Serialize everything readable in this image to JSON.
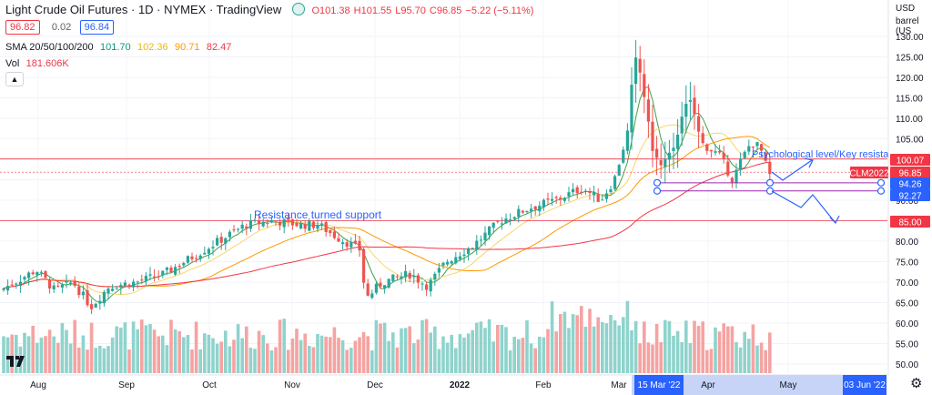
{
  "header": {
    "title": "Light Crude Oil Futures · 1D · NYMEX · TradingView",
    "status_color": "#26a69a",
    "ohlc": [
      {
        "key": "O",
        "value": "101.38"
      },
      {
        "key": "H",
        "value": "101.55"
      },
      {
        "key": "L",
        "value": "95.70"
      },
      {
        "key": "C",
        "value": "96.85"
      },
      {
        "key": "change",
        "value": "−5.22 (−5.11%)"
      }
    ],
    "bid": "96.82",
    "spread": "0.02",
    "ask": "96.84",
    "sma_label": "SMA 20/50/100/200",
    "sma_values": [
      {
        "value": "101.70",
        "color": "#089981"
      },
      {
        "value": "102.36",
        "color": "#f7c948"
      },
      {
        "value": "90.71",
        "color": "#ff9800"
      },
      {
        "value": "82.47",
        "color": "#f23645"
      }
    ],
    "vol_label": "Vol",
    "vol_value": "181.606K",
    "collapse_icon": "chevron-up-icon"
  },
  "axis": {
    "currency": "USD",
    "unit": "barrel (US",
    "price_ticks": [
      "130.00",
      "125.00",
      "120.00",
      "115.00",
      "110.00",
      "105.00",
      "100.00",
      "95.00",
      "90.00",
      "85.00",
      "80.00",
      "75.00",
      "70.00",
      "65.00",
      "60.00",
      "55.00",
      "50.00"
    ],
    "date_ticks": [
      "Aug",
      "Sep",
      "Oct",
      "Nov",
      "Dec",
      "2022",
      "Feb",
      "Mar",
      "Apr",
      "May"
    ],
    "highlighted_dates": [
      "15 Mar '22",
      "03 Jun '22"
    ]
  },
  "price_labels": [
    {
      "text": "100.07",
      "color": "#f23645"
    },
    {
      "text": "CLM2022",
      "color": "#f23645"
    },
    {
      "text": "96.85",
      "color": "#f23645"
    },
    {
      "text": "94.26",
      "color": "#2962ff"
    },
    {
      "text": "92.27",
      "color": "#2962ff"
    },
    {
      "text": "85.00",
      "color": "#f23645"
    }
  ],
  "annotations": {
    "support": "Resistance turned support",
    "resistance": "Psychological level/Key resistance"
  },
  "colors": {
    "up": "#26a69a",
    "down": "#ef5350",
    "vol_up": "#8fd3cc",
    "vol_down": "#f5a3a2",
    "sma20": "#43a047",
    "sma50": "#f7d66a",
    "sma100": "#ff9800",
    "sma200": "#f23645",
    "line": "#f23645",
    "channel": "#9c27b0",
    "arrow": "#2962ff"
  }
}
